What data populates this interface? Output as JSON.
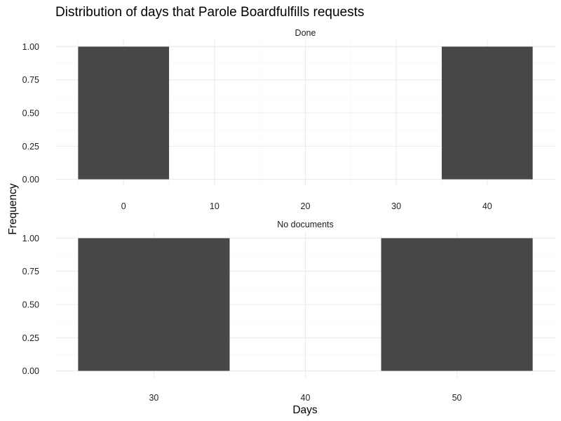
{
  "chart_data": {
    "type": "bar",
    "title": "Distribution of days that Parole Boardfulfills requests",
    "xlabel": "Days",
    "ylabel": "Frequency",
    "facets": [
      {
        "strip_label": "Done",
        "xlim": [
          -5,
          45
        ],
        "ylim": [
          0,
          1
        ],
        "x_ticks": [
          0,
          10,
          20,
          30,
          40
        ],
        "y_ticks": [
          0,
          0.25,
          0.5,
          0.75,
          1
        ],
        "bins": [
          {
            "x_start": -5,
            "x_end": 5,
            "value": 1
          },
          {
            "x_start": 35,
            "x_end": 45,
            "value": 1
          }
        ]
      },
      {
        "strip_label": "No documents",
        "xlim": [
          25,
          55
        ],
        "ylim": [
          0,
          1
        ],
        "x_ticks": [
          30,
          40,
          50
        ],
        "y_ticks": [
          0,
          0.25,
          0.5,
          0.75,
          1
        ],
        "bins": [
          {
            "x_start": 25,
            "x_end": 35,
            "value": 1
          },
          {
            "x_start": 45,
            "x_end": 55,
            "value": 1
          }
        ]
      }
    ],
    "grid": true,
    "bar_color": "#474747",
    "legend": "none"
  }
}
